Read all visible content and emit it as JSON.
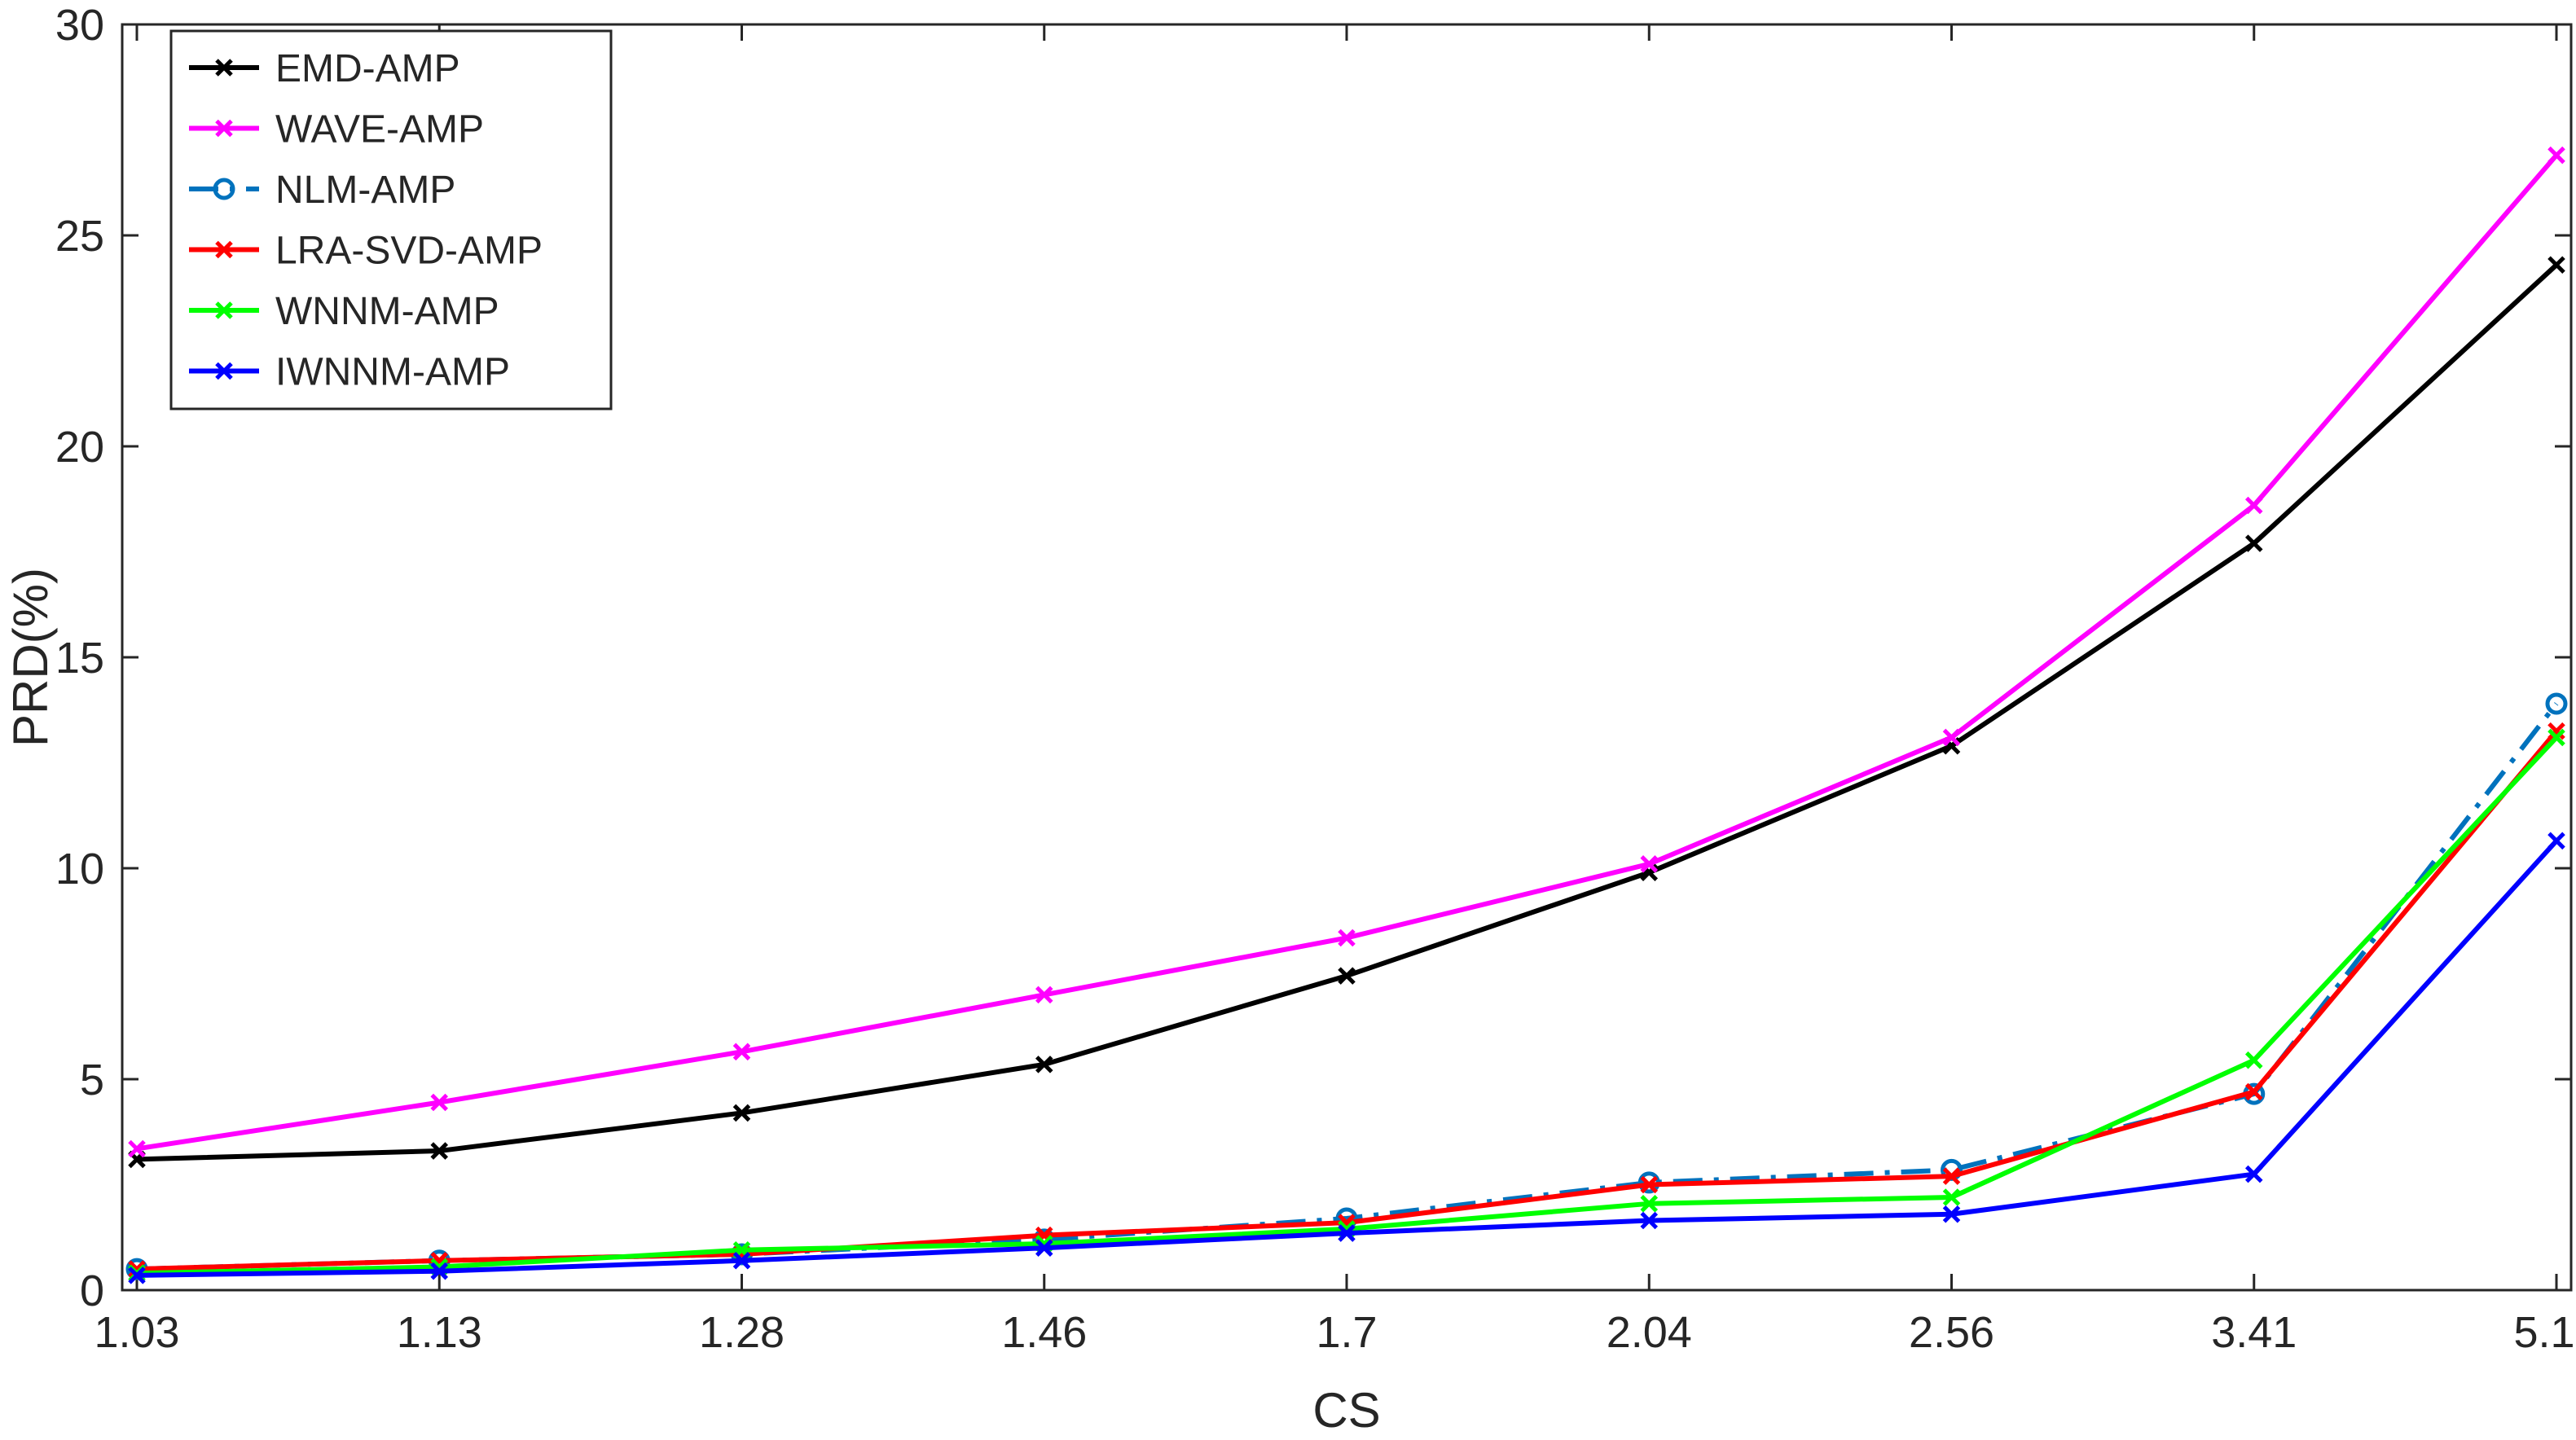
{
  "chart_data": {
    "type": "line",
    "title": "",
    "xlabel": "CS",
    "ylabel": "PRD(%)",
    "categories": [
      "1.03",
      "1.13",
      "1.28",
      "1.46",
      "1.7",
      "2.04",
      "2.56",
      "3.41",
      "5.12"
    ],
    "ylim": [
      0,
      30
    ],
    "yticks": [
      "0",
      "5",
      "10",
      "15",
      "20",
      "25",
      "30"
    ],
    "grid": false,
    "legend_position": "top-left",
    "series": [
      {
        "name": "EMD-AMP",
        "color": "#000000",
        "marker": "x",
        "dash": "solid",
        "values": [
          3.1,
          3.3,
          4.2,
          5.35,
          7.45,
          9.9,
          12.9,
          17.7,
          24.3
        ]
      },
      {
        "name": "WAVE-AMP",
        "color": "#ff00ff",
        "marker": "x",
        "dash": "solid",
        "values": [
          3.35,
          4.45,
          5.65,
          7.0,
          8.35,
          10.1,
          13.1,
          18.6,
          26.9
        ]
      },
      {
        "name": "NLM-AMP",
        "color": "#0072bd",
        "marker": "o",
        "dash": "dashdot",
        "values": [
          0.5,
          0.7,
          0.85,
          1.2,
          1.7,
          2.55,
          2.85,
          4.65,
          13.9
        ]
      },
      {
        "name": "LRA-SVD-AMP",
        "color": "#ff0000",
        "marker": "x",
        "dash": "solid",
        "values": [
          0.5,
          0.7,
          0.85,
          1.3,
          1.6,
          2.5,
          2.7,
          4.7,
          13.25
        ]
      },
      {
        "name": "WNNM-AMP",
        "color": "#00ff00",
        "marker": "x",
        "dash": "solid",
        "values": [
          0.4,
          0.55,
          0.95,
          1.1,
          1.45,
          2.05,
          2.2,
          5.45,
          13.1
        ]
      },
      {
        "name": "IWNNM-AMP",
        "color": "#0000ff",
        "marker": "x",
        "dash": "solid",
        "values": [
          0.35,
          0.45,
          0.7,
          1.0,
          1.35,
          1.65,
          1.8,
          2.75,
          10.65
        ]
      }
    ]
  }
}
